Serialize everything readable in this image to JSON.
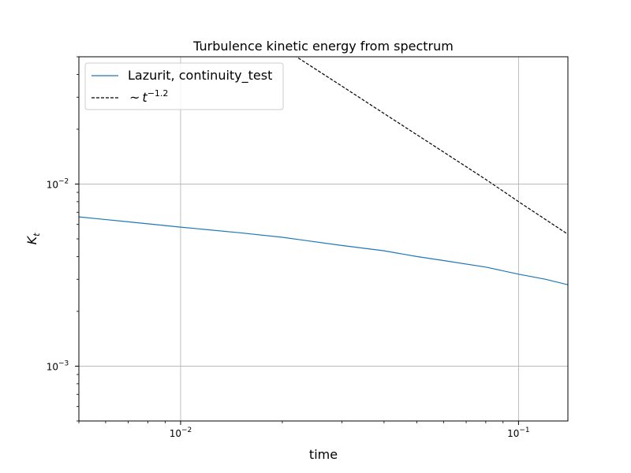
{
  "chart_data": {
    "type": "line",
    "title": "Turbulence kinetic energy from spectrum",
    "xlabel": "time",
    "ylabel": "K",
    "ylabel_subscript": "t",
    "xscale": "log",
    "yscale": "log",
    "xlim": [
      0.005,
      0.14
    ],
    "ylim": [
      0.0005,
      0.05
    ],
    "grid": true,
    "legend_placement": "upper-left",
    "x_ticks": [
      {
        "value": 0.01,
        "base": "10",
        "exp": "−2"
      },
      {
        "value": 0.1,
        "base": "10",
        "exp": "−1"
      }
    ],
    "y_ticks": [
      {
        "value": 0.001,
        "base": "10",
        "exp": "−3"
      },
      {
        "value": 0.01,
        "base": "10",
        "exp": "−2"
      }
    ],
    "series": [
      {
        "name": "Lazurit, continuity_test",
        "color": "#1f77b4",
        "style": "solid",
        "x": [
          0.005,
          0.007,
          0.01,
          0.015,
          0.02,
          0.03,
          0.04,
          0.05,
          0.06,
          0.08,
          0.1,
          0.12,
          0.14
        ],
        "y": [
          0.0066,
          0.0062,
          0.0058,
          0.0054,
          0.0051,
          0.0046,
          0.0043,
          0.004,
          0.0038,
          0.0035,
          0.0032,
          0.003,
          0.0028
        ]
      },
      {
        "name": "~",
        "name_var": "t",
        "name_exp": "−1.2",
        "color": "#000000",
        "style": "dashed",
        "x": [
          0.02,
          0.03,
          0.04,
          0.06,
          0.08,
          0.1,
          0.12,
          0.14
        ],
        "y": [
          0.0561,
          0.0345,
          0.0244,
          0.015,
          0.0106,
          0.008,
          0.0064,
          0.0053
        ]
      }
    ]
  }
}
